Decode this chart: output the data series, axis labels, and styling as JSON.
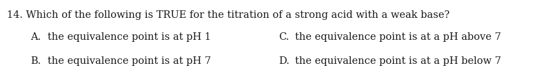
{
  "background_color": "#ffffff",
  "question": "14. Which of the following is TRUE for the titration of a strong acid with a weak base?",
  "options": [
    {
      "label": "A.",
      "text": "the equivalence point is at pH 1"
    },
    {
      "label": "B.",
      "text": "the equivalence point is at pH 7"
    },
    {
      "label": "C.",
      "text": "the equivalence point is at a pH above 7"
    },
    {
      "label": "D.",
      "text": "the equivalence point is at a pH below 7"
    }
  ],
  "font_size_question": 10.5,
  "font_size_options": 10.5,
  "text_color": "#1a1a1a",
  "fig_width": 8.08,
  "fig_height": 0.99,
  "dpi": 100
}
